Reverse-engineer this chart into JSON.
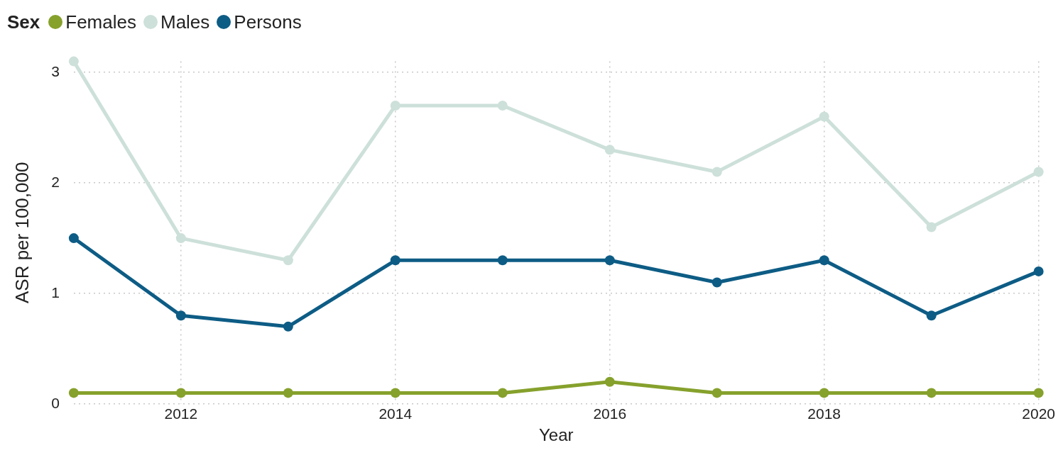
{
  "chart_data": {
    "type": "line",
    "legend_title": "Sex",
    "xlabel": "Year",
    "ylabel": "ASR per 100,000",
    "x": [
      2011,
      2012,
      2013,
      2014,
      2015,
      2016,
      2017,
      2018,
      2019,
      2020
    ],
    "series": [
      {
        "name": "Females",
        "color": "#86a12c",
        "values": [
          0.1,
          0.1,
          0.1,
          0.1,
          0.1,
          0.2,
          0.1,
          0.1,
          0.1,
          0.1
        ]
      },
      {
        "name": "Males",
        "color": "#cde0da",
        "values": [
          3.1,
          1.5,
          1.3,
          2.7,
          2.7,
          2.3,
          2.1,
          2.6,
          1.6,
          2.1
        ]
      },
      {
        "name": "Persons",
        "color": "#0d5c85",
        "values": [
          1.5,
          0.8,
          0.7,
          1.3,
          1.3,
          1.3,
          1.1,
          1.3,
          0.8,
          1.2
        ]
      }
    ],
    "xlim": [
      2011,
      2020
    ],
    "xticks": [
      2012,
      2014,
      2016,
      2018,
      2020
    ],
    "ylim": [
      0,
      3.1
    ],
    "yticks": [
      0,
      1,
      2,
      3
    ],
    "grid": true,
    "legend": "top left",
    "marker": "circle",
    "line_style": "solid"
  }
}
